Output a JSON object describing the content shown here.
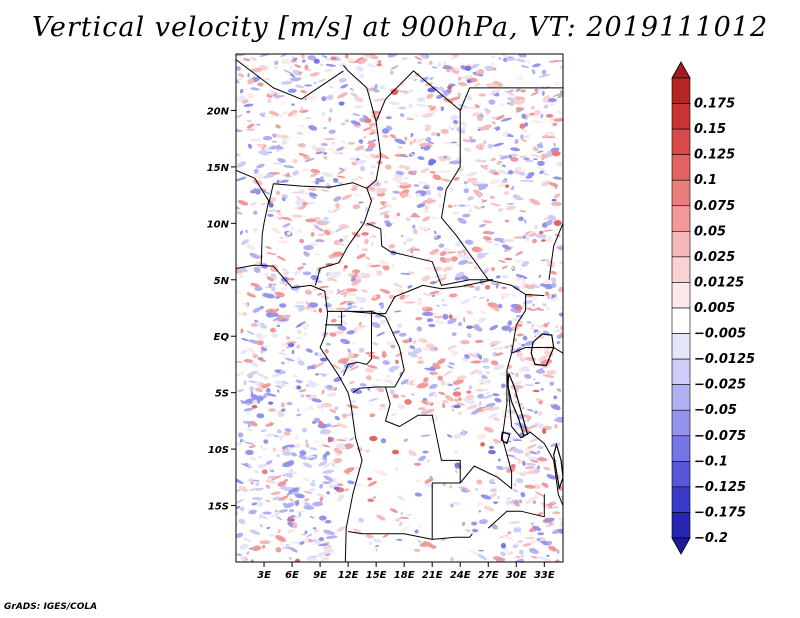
{
  "title": "Vertical velocity [m/s] at 900hPa, VT: 2019111012",
  "footer": "GrADS: IGES/COLA",
  "map": {
    "region": "Central Africa",
    "lon_range": [
      0,
      35
    ],
    "lat_range": [
      -20,
      25
    ],
    "lat_ticks": [
      {
        "value": 20,
        "label": "20N"
      },
      {
        "value": 15,
        "label": "15N"
      },
      {
        "value": 10,
        "label": "10N"
      },
      {
        "value": 5,
        "label": "5N"
      },
      {
        "value": 0,
        "label": "EQ"
      },
      {
        "value": -5,
        "label": "5S"
      },
      {
        "value": -10,
        "label": "10S"
      },
      {
        "value": -15,
        "label": "15S"
      }
    ],
    "lon_ticks": [
      {
        "value": 3,
        "label": "3E"
      },
      {
        "value": 6,
        "label": "6E"
      },
      {
        "value": 9,
        "label": "9E"
      },
      {
        "value": 12,
        "label": "12E"
      },
      {
        "value": 15,
        "label": "15E"
      },
      {
        "value": 18,
        "label": "18E"
      },
      {
        "value": 21,
        "label": "21E"
      },
      {
        "value": 24,
        "label": "24E"
      },
      {
        "value": 27,
        "label": "27E"
      },
      {
        "value": 30,
        "label": "30E"
      },
      {
        "value": 33,
        "label": "33E"
      }
    ]
  },
  "colorbar": {
    "levels": [
      {
        "label": "0.175",
        "color": "#b52525"
      },
      {
        "label": "0.15",
        "color": "#c93434"
      },
      {
        "label": "0.125",
        "color": "#d84a4a"
      },
      {
        "label": "0.1",
        "color": "#e36262"
      },
      {
        "label": "0.075",
        "color": "#eb7d7d"
      },
      {
        "label": "0.05",
        "color": "#f29a9a"
      },
      {
        "label": "0.025",
        "color": "#f6b9b9"
      },
      {
        "label": "0.0125",
        "color": "#f9d3d3"
      },
      {
        "label": "0.005",
        "color": "#fce9e9"
      },
      {
        "label": "-0.005",
        "color": "#ffffff"
      },
      {
        "label": "-0.0125",
        "color": "#e6e6fb"
      },
      {
        "label": "-0.025",
        "color": "#cdcdf7"
      },
      {
        "label": "-0.05",
        "color": "#b1b1f2"
      },
      {
        "label": "-0.075",
        "color": "#9494ec"
      },
      {
        "label": "-0.1",
        "color": "#7575e3"
      },
      {
        "label": "-0.125",
        "color": "#5757d8"
      },
      {
        "label": "-0.175",
        "color": "#3a3ac8"
      },
      {
        "label": "-0.2",
        "color": "#2626b2"
      }
    ],
    "top_arrow_color": "#a11c1c",
    "bottom_arrow_color": "#1d1d9c"
  }
}
